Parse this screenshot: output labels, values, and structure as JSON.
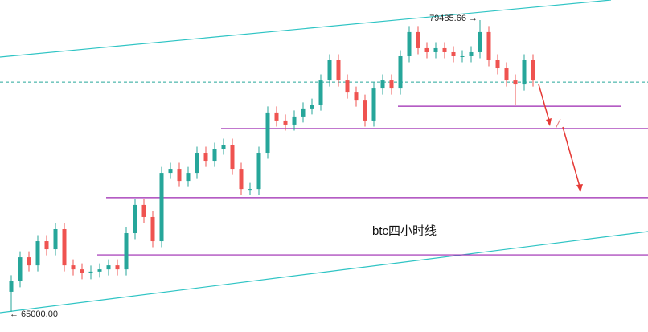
{
  "chart_data": {
    "type": "candlestick",
    "title": "btc四小时线",
    "up_color": "#26a69a",
    "down_color": "#ef5350",
    "ylim": [
      64002,
      80483
    ],
    "open": [
      66000,
      66520,
      67710,
      67310,
      68510,
      68110,
      69110,
      67310,
      67110,
      66920,
      67000,
      67110,
      67310,
      67110,
      68910,
      70310,
      69710,
      68510,
      71900,
      72100,
      71500,
      71900,
      72900,
      72500,
      73100,
      73300,
      72100,
      71100,
      71100,
      72900,
      74900,
      74500,
      74300,
      74700,
      75100,
      75290,
      76490,
      77490,
      76490,
      75890,
      75490,
      74500,
      76090,
      76490,
      76090,
      77690,
      78890,
      78090,
      77890,
      78090,
      77890,
      77690,
      77690,
      77890,
      78890,
      77490,
      77090,
      76490,
      76290,
      77490
    ],
    "close": [
      66520,
      67710,
      67310,
      68510,
      68110,
      69110,
      67310,
      67110,
      66920,
      67000,
      67110,
      67310,
      67110,
      68910,
      70310,
      69710,
      68510,
      71900,
      72100,
      71500,
      71900,
      72900,
      72500,
      73100,
      73300,
      72100,
      71100,
      71100,
      72900,
      74900,
      74500,
      74300,
      74700,
      75100,
      75290,
      76490,
      77490,
      76490,
      75890,
      75490,
      74500,
      76090,
      76490,
      76090,
      77690,
      78890,
      78090,
      77890,
      78090,
      77890,
      77690,
      77690,
      77890,
      78890,
      77490,
      77090,
      76490,
      76290,
      77490,
      76490
    ],
    "high": [
      66820,
      68010,
      68010,
      68810,
      68810,
      69410,
      69410,
      67610,
      67410,
      67300,
      67410,
      67610,
      67610,
      69210,
      70610,
      70610,
      70010,
      72200,
      72400,
      72400,
      72200,
      73200,
      73200,
      73400,
      73600,
      73600,
      72400,
      71400,
      73200,
      75200,
      75200,
      74800,
      75000,
      75400,
      75590,
      76790,
      77790,
      77790,
      76790,
      76190,
      75790,
      76390,
      76790,
      76790,
      77990,
      79190,
      79190,
      78390,
      78390,
      78390,
      78190,
      77990,
      78190,
      79485.66,
      79190,
      77790,
      77390,
      76790,
      77790,
      77790
    ],
    "low": [
      65000,
      66220,
      67010,
      67010,
      67810,
      67810,
      67010,
      66810,
      66620,
      66620,
      66700,
      66810,
      66810,
      66810,
      68610,
      69410,
      68210,
      68210,
      71600,
      71200,
      71200,
      71600,
      72200,
      72200,
      72800,
      71800,
      70800,
      70800,
      70800,
      72600,
      74200,
      74000,
      74000,
      74400,
      74800,
      74990,
      76190,
      76190,
      75590,
      75190,
      74200,
      74200,
      75790,
      75790,
      75790,
      77390,
      77790,
      77590,
      77590,
      77590,
      77390,
      77390,
      77390,
      77590,
      77190,
      76790,
      76190,
      75290,
      75990,
      76190
    ],
    "price_labels": [
      {
        "value": 79485.66,
        "label": "79485.66 →",
        "candle": 53
      },
      {
        "value": 65000,
        "label": "← 65000.00",
        "candle": 0
      }
    ],
    "current_price": 76410,
    "current_color": "#26a69a",
    "levels": [
      {
        "value": 75210,
        "from": 44,
        "to": 69
      },
      {
        "value": 74100,
        "from": 24
      },
      {
        "value": 70670,
        "from": 11
      },
      {
        "value": 67830,
        "from": 10
      }
    ],
    "level_color": "#9c27b0"
  }
}
